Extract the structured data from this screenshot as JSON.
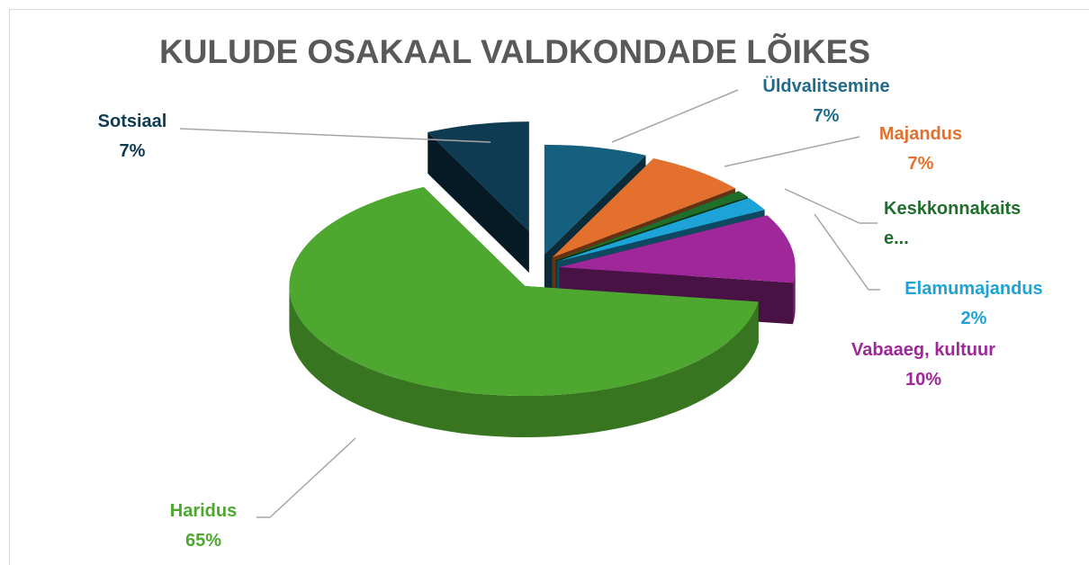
{
  "chart_data": {
    "type": "pie",
    "title": "KULUDE OSAKAAL VALDKONDADE LÕIKES",
    "categories": [
      "Üldvalitsemine",
      "Majandus",
      "Keskkonnakaitse...",
      "Elamumajandus",
      "Vabaaeg, kultuur",
      "Haridus",
      "Sotsiaal"
    ],
    "values": [
      7,
      7,
      1,
      2,
      10,
      65,
      7
    ],
    "value_labels": [
      "7%",
      "7%",
      null,
      "2%",
      "10%",
      "65%",
      "7%"
    ],
    "colors": [
      "#16607f",
      "#e3702c",
      "#1f6e2b",
      "#1ea3d8",
      "#a0279a",
      "#4ea72e",
      "#0e3a52"
    ]
  }
}
